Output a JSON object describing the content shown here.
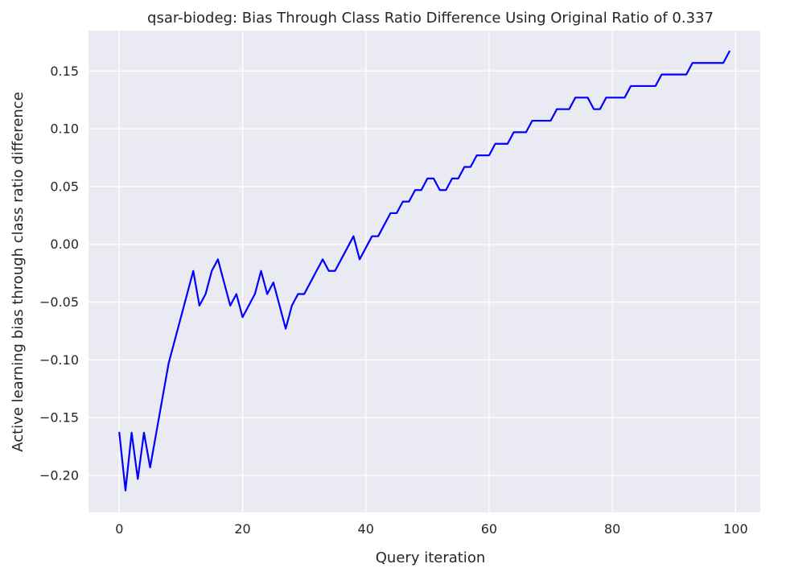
{
  "chart_data": {
    "type": "line",
    "title": "qsar-biodeg: Bias Through Class Ratio Difference Using Original Ratio of 0.337",
    "xlabel": "Query iteration",
    "ylabel": "Active learning bias through class ratio difference",
    "xlim": [
      -5,
      104
    ],
    "ylim": [
      -0.232,
      0.185
    ],
    "xticks": [
      0,
      20,
      40,
      60,
      80,
      100
    ],
    "yticks": [
      -0.2,
      -0.15,
      -0.1,
      -0.05,
      0.0,
      0.05,
      0.1,
      0.15
    ],
    "xtick_labels": [
      "0",
      "20",
      "40",
      "60",
      "80",
      "100"
    ],
    "ytick_labels": [
      "−0.20",
      "−0.15",
      "−0.10",
      "−0.05",
      "0.00",
      "0.05",
      "0.10",
      "0.15"
    ],
    "grid": true,
    "series": [
      {
        "color": "#0000ff",
        "x": [
          0,
          1,
          2,
          3,
          4,
          5,
          6,
          7,
          8,
          9,
          10,
          11,
          12,
          13,
          14,
          15,
          16,
          17,
          18,
          19,
          20,
          21,
          22,
          23,
          24,
          25,
          26,
          27,
          28,
          29,
          30,
          31,
          32,
          33,
          34,
          35,
          36,
          37,
          38,
          39,
          40,
          41,
          42,
          43,
          44,
          45,
          46,
          47,
          48,
          49,
          50,
          51,
          52,
          53,
          54,
          55,
          56,
          57,
          58,
          59,
          60,
          61,
          62,
          63,
          64,
          65,
          66,
          67,
          68,
          69,
          70,
          71,
          72,
          73,
          74,
          75,
          76,
          77,
          78,
          79,
          80,
          81,
          82,
          83,
          84,
          85,
          86,
          87,
          88,
          89,
          90,
          91,
          92,
          93,
          94,
          95,
          96,
          97,
          98,
          99
        ],
        "y": [
          -0.163,
          -0.213,
          -0.163,
          -0.203,
          -0.163,
          -0.193,
          -0.163,
          -0.133,
          -0.103,
          -0.083,
          -0.063,
          -0.043,
          -0.023,
          -0.053,
          -0.043,
          -0.023,
          -0.013,
          -0.033,
          -0.053,
          -0.043,
          -0.063,
          -0.053,
          -0.043,
          -0.023,
          -0.043,
          -0.033,
          -0.053,
          -0.073,
          -0.053,
          -0.043,
          -0.043,
          -0.033,
          -0.023,
          -0.013,
          -0.023,
          -0.023,
          -0.013,
          -0.003,
          0.007,
          -0.013,
          -0.003,
          0.007,
          0.007,
          0.017,
          0.027,
          0.027,
          0.037,
          0.037,
          0.047,
          0.047,
          0.057,
          0.057,
          0.047,
          0.047,
          0.057,
          0.057,
          0.067,
          0.067,
          0.077,
          0.077,
          0.077,
          0.087,
          0.087,
          0.087,
          0.097,
          0.097,
          0.097,
          0.107,
          0.107,
          0.107,
          0.107,
          0.117,
          0.117,
          0.117,
          0.127,
          0.127,
          0.127,
          0.117,
          0.117,
          0.127,
          0.127,
          0.127,
          0.127,
          0.137,
          0.137,
          0.137,
          0.137,
          0.137,
          0.147,
          0.147,
          0.147,
          0.147,
          0.147,
          0.157,
          0.157,
          0.157,
          0.157,
          0.157,
          0.157,
          0.167
        ]
      }
    ]
  }
}
